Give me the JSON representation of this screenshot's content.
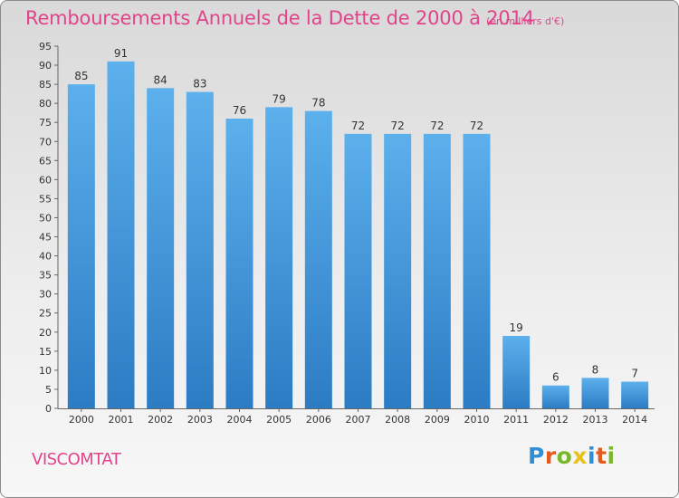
{
  "chart_data": {
    "type": "bar",
    "title": "Remboursements Annuels de la Dette de 2000 à 2014",
    "subtitle": "(en milliers d'€)",
    "categories": [
      "2000",
      "2001",
      "2002",
      "2003",
      "2004",
      "2005",
      "2006",
      "2007",
      "2008",
      "2009",
      "2010",
      "2011",
      "2012",
      "2013",
      "2014"
    ],
    "values": [
      85,
      91,
      84,
      83,
      76,
      79,
      78,
      72,
      72,
      72,
      72,
      19,
      6,
      8,
      7
    ],
    "ylim": [
      0,
      95
    ],
    "yticks": [
      0,
      5,
      10,
      15,
      20,
      25,
      30,
      35,
      40,
      45,
      50,
      55,
      60,
      65,
      70,
      75,
      80,
      85,
      90,
      95
    ],
    "grid": false,
    "bar_color": "#4a98d8",
    "xlabel": "",
    "ylabel": ""
  },
  "commune": "VISCOMTAT",
  "brand": {
    "letters": [
      "P",
      "r",
      "o",
      "x",
      "i",
      "t",
      "i"
    ],
    "colors": [
      "#2f8fd6",
      "#e35a1e",
      "#78b828",
      "#e8c21a",
      "#2f8fd6",
      "#e35a1e",
      "#78b828"
    ]
  },
  "colors": {
    "accent": "#e0448a",
    "frame": "#8a8a8a"
  }
}
